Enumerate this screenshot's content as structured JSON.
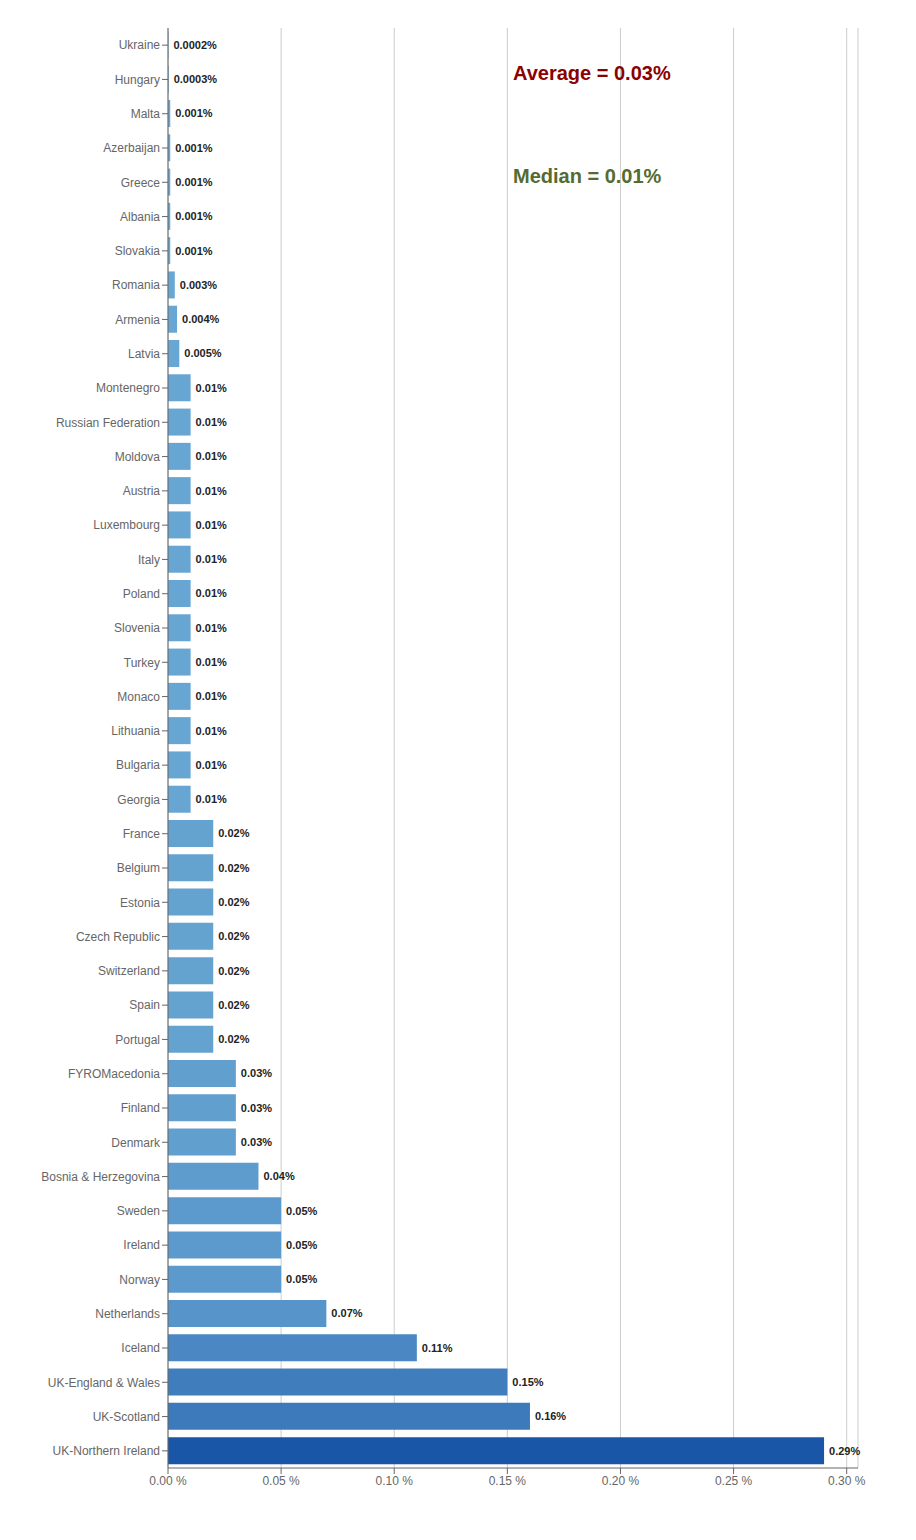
{
  "chart_data": {
    "type": "bar",
    "orientation": "horizontal",
    "categories": [
      "Ukraine",
      "Hungary",
      "Malta",
      "Azerbaijan",
      "Greece",
      "Albania",
      "Slovakia",
      "Romania",
      "Armenia",
      "Latvia",
      "Montenegro",
      "Russian Federation",
      "Moldova",
      "Austria",
      "Luxembourg",
      "Italy",
      "Poland",
      "Slovenia",
      "Turkey",
      "Monaco",
      "Lithuania",
      "Bulgaria",
      "Georgia",
      "France",
      "Belgium",
      "Estonia",
      "Czech Republic",
      "Switzerland",
      "Spain",
      "Portugal",
      "FYROMacedonia",
      "Finland",
      "Denmark",
      "Bosnia & Herzegovina",
      "Sweden",
      "Ireland",
      "Norway",
      "Netherlands",
      "Iceland",
      "UK-England & Wales",
      "UK-Scotland",
      "UK-Northern Ireland"
    ],
    "values": [
      0.0002,
      0.0003,
      0.001,
      0.001,
      0.001,
      0.001,
      0.001,
      0.003,
      0.004,
      0.005,
      0.01,
      0.01,
      0.01,
      0.01,
      0.01,
      0.01,
      0.01,
      0.01,
      0.01,
      0.01,
      0.01,
      0.01,
      0.01,
      0.02,
      0.02,
      0.02,
      0.02,
      0.02,
      0.02,
      0.02,
      0.03,
      0.03,
      0.03,
      0.04,
      0.05,
      0.05,
      0.05,
      0.07,
      0.11,
      0.15,
      0.16,
      0.29
    ],
    "value_labels": [
      "0.0002%",
      "0.0003%",
      "0.001%",
      "0.001%",
      "0.001%",
      "0.001%",
      "0.001%",
      "0.003%",
      "0.004%",
      "0.005%",
      "0.01%",
      "0.01%",
      "0.01%",
      "0.01%",
      "0.01%",
      "0.01%",
      "0.01%",
      "0.01%",
      "0.01%",
      "0.01%",
      "0.01%",
      "0.01%",
      "0.01%",
      "0.02%",
      "0.02%",
      "0.02%",
      "0.02%",
      "0.02%",
      "0.02%",
      "0.02%",
      "0.03%",
      "0.03%",
      "0.03%",
      "0.04%",
      "0.05%",
      "0.05%",
      "0.05%",
      "0.07%",
      "0.11%",
      "0.15%",
      "0.16%",
      "0.29%"
    ],
    "colors": [
      "#69a7d3",
      "#69a7d3",
      "#69a7d3",
      "#69a7d3",
      "#69a7d3",
      "#69a7d3",
      "#69a7d3",
      "#69a7d3",
      "#68a6d3",
      "#68a6d3",
      "#67a5d2",
      "#67a5d2",
      "#67a5d2",
      "#67a5d2",
      "#67a5d2",
      "#67a5d2",
      "#67a5d2",
      "#67a5d2",
      "#67a5d2",
      "#67a5d2",
      "#67a5d2",
      "#67a5d2",
      "#67a5d2",
      "#64a2d0",
      "#64a2d0",
      "#64a2d0",
      "#64a2d0",
      "#64a2d0",
      "#64a2d0",
      "#64a2d0",
      "#619fcf",
      "#619fcf",
      "#619fcf",
      "#5e9ccd",
      "#5c99cc",
      "#5c99cc",
      "#5c99cc",
      "#5694c9",
      "#4b88c3",
      "#407dbd",
      "#3d7abb",
      "#1a56a8"
    ],
    "xlim": [
      0,
      0.305
    ],
    "xticks": [
      {
        "value": 0.0,
        "label": "0.00 %"
      },
      {
        "value": 0.05,
        "label": "0.05 %"
      },
      {
        "value": 0.1,
        "label": "0.10 %"
      },
      {
        "value": 0.15,
        "label": "0.15 %"
      },
      {
        "value": 0.2,
        "label": "0.20 %"
      },
      {
        "value": 0.25,
        "label": "0.25 %"
      },
      {
        "value": 0.3,
        "label": "0.30 %"
      }
    ],
    "grid": true,
    "data_labels": true,
    "annotations": [
      {
        "text": "Average = 0.03%",
        "color": "#8B0000"
      },
      {
        "text": "Median = 0.01%",
        "color": "#556B2F"
      }
    ]
  }
}
